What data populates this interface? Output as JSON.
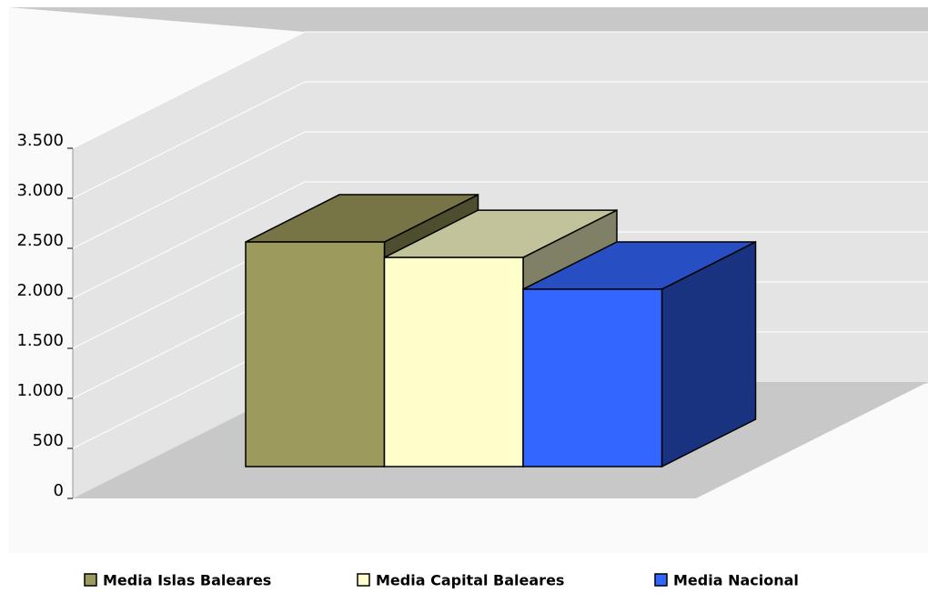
{
  "chart_data": {
    "type": "bar3d",
    "series": [
      {
        "name": "Media Islas Baleares",
        "color": "#9c9a5c",
        "values": [
          2245
        ]
      },
      {
        "name": "Media Capital Baleares",
        "color": "#ffffcc",
        "values": [
          2090
        ]
      },
      {
        "name": "Media Nacional",
        "color": "#3366ff",
        "values": [
          1773
        ]
      }
    ],
    "ylim": [
      0,
      3500
    ],
    "yticks": [
      0,
      500,
      {
        "value": 1000,
        "label": "1.000"
      },
      {
        "value": 1500,
        "label": "1.500"
      },
      {
        "value": 2000,
        "label": "2.000"
      },
      {
        "value": 2500,
        "label": "2.500"
      },
      {
        "value": 3000,
        "label": "3.000"
      },
      {
        "value": 3500,
        "label": "3.500"
      }
    ],
    "grid": true,
    "legend": "bottom"
  }
}
